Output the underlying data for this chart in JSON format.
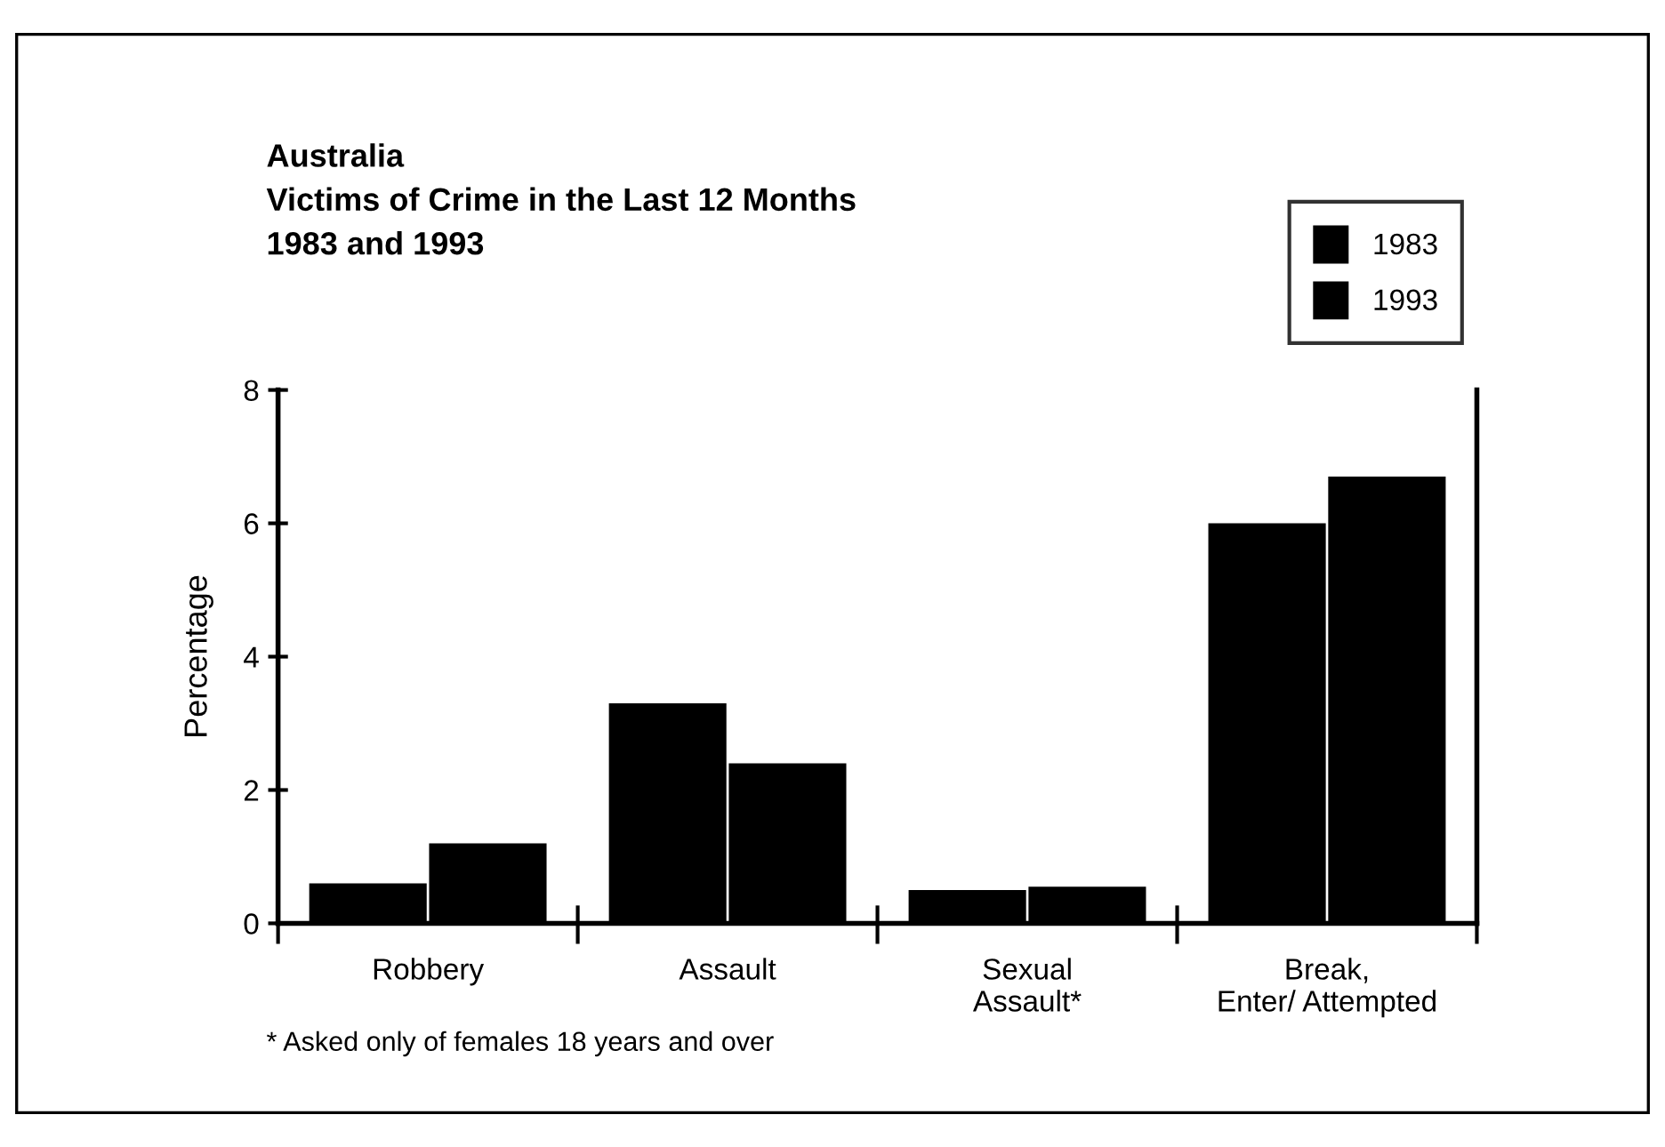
{
  "chart_data": {
    "type": "bar",
    "title": "Australia\nVictims of Crime in the Last 12 Months\n1983 and 1993",
    "ylabel": "Percentage",
    "categories": [
      "Robbery",
      "Assault",
      "Sexual\nAssault*",
      "Break,\nEnter/ Attempted"
    ],
    "series": [
      {
        "name": "1983",
        "color": "#000000",
        "values": [
          0.6,
          3.3,
          0.5,
          6.0
        ]
      },
      {
        "name": "1993",
        "color": "#000000",
        "values": [
          1.2,
          2.4,
          0.55,
          6.7
        ]
      }
    ],
    "ylim": [
      0,
      8
    ],
    "yticks": [
      0,
      2,
      4,
      6,
      8
    ],
    "grid": false,
    "legend": "top right",
    "annotations": [
      "* Asked only of females 18 years and over"
    ]
  }
}
